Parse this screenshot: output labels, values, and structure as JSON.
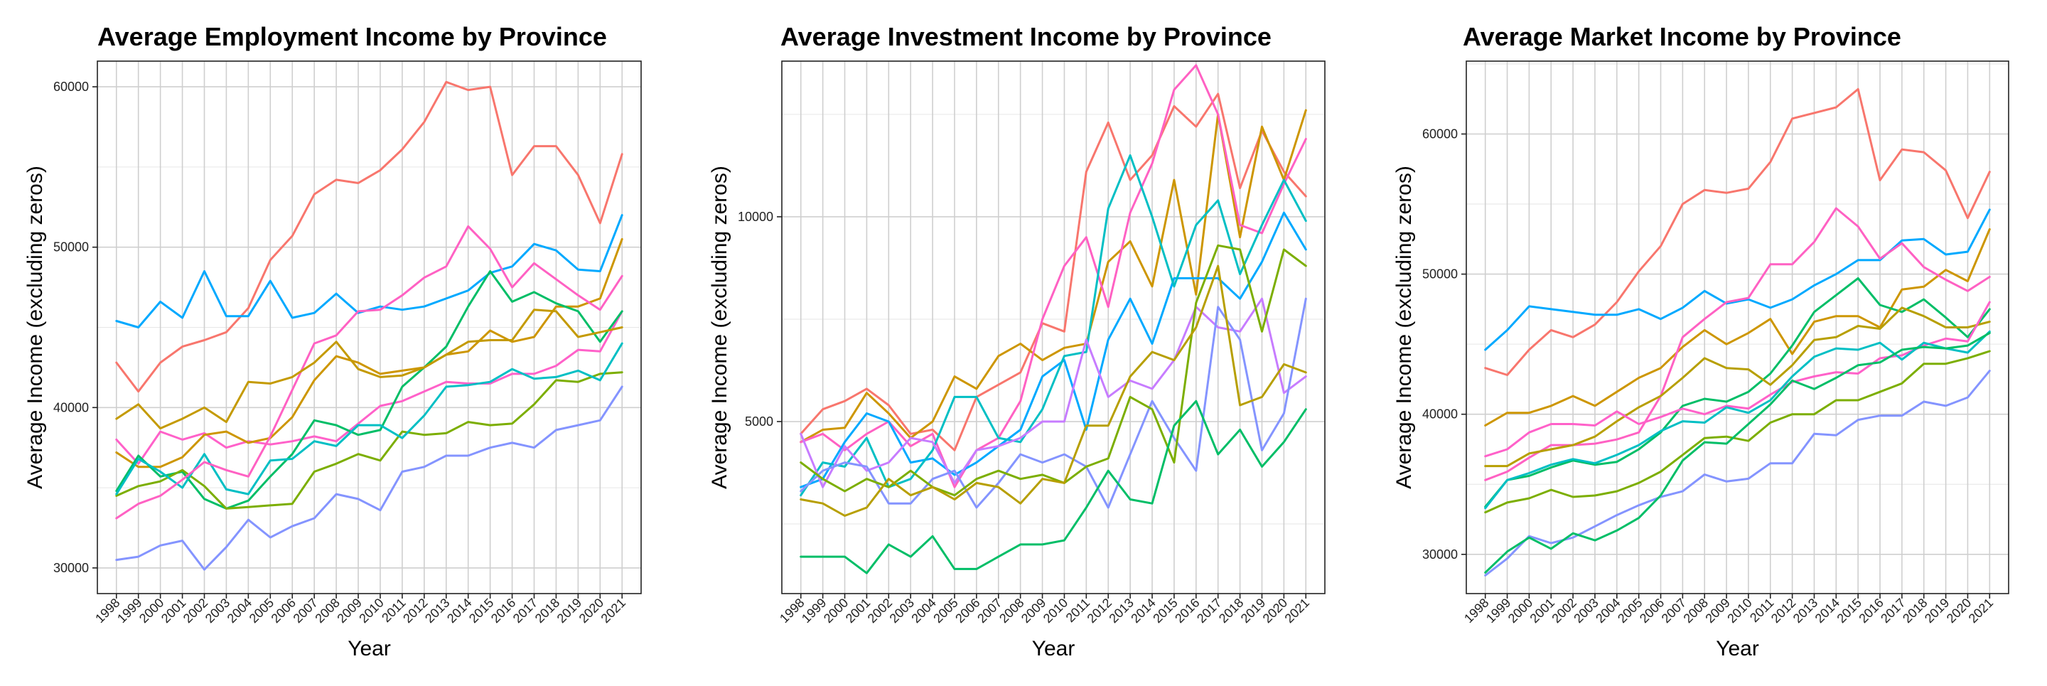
{
  "chart_data": [
    {
      "type": "line",
      "title": "Average Employment Income by Province",
      "xlabel": "Year",
      "ylabel": "Average Income (excluding zeros)",
      "x": [
        1998,
        1999,
        2000,
        2001,
        2002,
        2003,
        2004,
        2005,
        2006,
        2007,
        2008,
        2009,
        2010,
        2011,
        2012,
        2013,
        2014,
        2015,
        2016,
        2017,
        2018,
        2019,
        2020,
        2021
      ],
      "yticks": [
        30000,
        40000,
        50000,
        60000
      ],
      "ylim": [
        28400,
        61600
      ],
      "grid": true,
      "series": [
        {
          "color": "#F8766D",
          "values": [
            42800,
            41000,
            42800,
            43800,
            44200,
            44700,
            46200,
            49200,
            50700,
            53300,
            54200,
            54000,
            54800,
            56100,
            57800,
            60300,
            59800,
            60000,
            54500,
            56300,
            56300,
            54500,
            51500,
            55800
          ]
        },
        {
          "color": "#00A9FF",
          "values": [
            45400,
            45000,
            46600,
            45600,
            48500,
            45700,
            45700,
            47900,
            45600,
            45900,
            47100,
            45900,
            46300,
            46100,
            46300,
            46800,
            47300,
            48400,
            48800,
            50200,
            49800,
            48600,
            48500,
            52000
          ]
        },
        {
          "color": "#FF61C9",
          "values": [
            38000,
            36500,
            38500,
            38000,
            38400,
            37500,
            37900,
            37700,
            37900,
            38200,
            37900,
            39000,
            40100,
            40400,
            41000,
            41600,
            41500,
            41500,
            42100,
            42100,
            42600,
            43600,
            43500,
            46000
          ]
        },
        {
          "color": "#CD9600",
          "values": [
            37200,
            36300,
            36300,
            36900,
            38300,
            38500,
            37800,
            38100,
            39400,
            41700,
            43200,
            42800,
            42100,
            42300,
            42500,
            43300,
            43500,
            44800,
            44100,
            44400,
            46300,
            46300,
            46800,
            50500
          ]
        },
        {
          "color": "#00BE67",
          "values": [
            34800,
            37000,
            35700,
            36000,
            34300,
            33700,
            34200,
            35700,
            37100,
            39200,
            38900,
            38300,
            38600,
            41300,
            42500,
            43800,
            46300,
            48500,
            46600,
            47200,
            46500,
            46000,
            44100,
            46000
          ]
        },
        {
          "color": "#7CAE00",
          "values": [
            34500,
            35100,
            35400,
            36100,
            35100,
            33700,
            33800,
            33900,
            34000,
            36000,
            36500,
            37100,
            36700,
            38500,
            38300,
            38400,
            39100,
            38900,
            39000,
            40200,
            41700,
            41600,
            42100,
            42200
          ]
        },
        {
          "color": "#00BFC4",
          "values": [
            34600,
            36800,
            36000,
            35000,
            37100,
            34900,
            34600,
            36700,
            36800,
            37900,
            37600,
            38900,
            38900,
            38100,
            39500,
            41300,
            41400,
            41600,
            42400,
            41800,
            41900,
            42300,
            41700,
            44000
          ]
        },
        {
          "color": "#FF61C3",
          "values": [
            33100,
            34000,
            34500,
            35500,
            36600,
            36100,
            35700,
            38200,
            41100,
            44000,
            44500,
            46000,
            46100,
            47000,
            48100,
            48800,
            51300,
            49900,
            47500,
            49000,
            48000,
            47000,
            46100,
            48200
          ]
        },
        {
          "color": "#8494FF",
          "values": [
            30500,
            30700,
            31400,
            31700,
            29900,
            31300,
            33000,
            31900,
            32600,
            33100,
            34600,
            34300,
            33600,
            36000,
            36300,
            37000,
            37000,
            37500,
            37800,
            37500,
            38600,
            38900,
            39200,
            41300
          ]
        },
        {
          "color": "#C49A00",
          "values": [
            39300,
            40200,
            38700,
            39300,
            40000,
            39100,
            41600,
            41500,
            41900,
            42800,
            44100,
            42400,
            41900,
            42000,
            42500,
            43300,
            44100,
            44200,
            44200,
            46100,
            46000,
            44400,
            44700,
            45000
          ]
        }
      ]
    },
    {
      "type": "line",
      "title": "Average Investment Income by Province",
      "xlabel": "Year",
      "ylabel": "Average Income (excluding zeros)",
      "x": [
        1998,
        1999,
        2000,
        2001,
        2002,
        2003,
        2004,
        2005,
        2006,
        2007,
        2008,
        2009,
        2010,
        2011,
        2012,
        2013,
        2014,
        2015,
        2016,
        2017,
        2018,
        2019,
        2020,
        2021
      ],
      "yticks": [
        5000,
        10000
      ],
      "ylim": [
        800,
        13800
      ],
      "grid": true,
      "series": [
        {
          "color": "#F8766D",
          "values": [
            4700,
            5300,
            5500,
            5800,
            5400,
            4700,
            4800,
            4300,
            5600,
            5900,
            6200,
            7400,
            7200,
            11100,
            12300,
            10900,
            11500,
            12700,
            12200,
            13000,
            10700,
            12100,
            11100,
            10500
          ]
        },
        {
          "color": "#CD9600",
          "values": [
            4500,
            4800,
            4850,
            5700,
            5200,
            4600,
            5000,
            6100,
            5800,
            6600,
            6900,
            6500,
            6800,
            6900,
            8900,
            9400,
            8300,
            10900,
            8100,
            12500,
            9500,
            12200,
            10900,
            12600
          ]
        },
        {
          "color": "#FF61C3",
          "values": [
            4500,
            4700,
            4300,
            4700,
            5000,
            4400,
            4700,
            3400,
            4300,
            4600,
            5500,
            7500,
            8800,
            9500,
            7800,
            10100,
            11300,
            13100,
            13700,
            12500,
            9800,
            9600,
            10800,
            11900
          ]
        },
        {
          "color": "#00A9FF",
          "values": [
            3400,
            3600,
            4500,
            5200,
            5000,
            4000,
            4100,
            3700,
            4000,
            4400,
            4800,
            6100,
            6500,
            4800,
            7000,
            8000,
            6900,
            8500,
            8500,
            8500,
            8000,
            8900,
            10100,
            9200
          ]
        },
        {
          "color": "#00BFC4",
          "values": [
            3200,
            4000,
            3900,
            4600,
            3400,
            3600,
            4300,
            5600,
            5600,
            4600,
            4500,
            5300,
            6600,
            6700,
            10200,
            11500,
            10000,
            8300,
            9800,
            10400,
            8600,
            9800,
            10900,
            9900
          ]
        },
        {
          "color": "#C77CFF",
          "values": [
            4700,
            3400,
            4400,
            3800,
            4000,
            4600,
            4500,
            3500,
            4300,
            4400,
            4600,
            5000,
            5000,
            7000,
            5600,
            6000,
            5800,
            6500,
            7800,
            7300,
            7200,
            8000,
            5700,
            6100
          ]
        },
        {
          "color": "#8494FF",
          "values": [
            3300,
            3800,
            4000,
            3900,
            3000,
            3000,
            3600,
            3800,
            2900,
            3500,
            4200,
            4000,
            4200,
            3900,
            2900,
            4200,
            5500,
            4600,
            3800,
            7800,
            7000,
            4300,
            5200,
            8000
          ]
        },
        {
          "color": "#7CAE00",
          "values": [
            4000,
            3600,
            3300,
            3600,
            3400,
            3800,
            3400,
            3200,
            3600,
            3800,
            3600,
            3700,
            3500,
            3900,
            4100,
            5600,
            5300,
            4000,
            7900,
            9300,
            9200,
            7200,
            9200,
            8800
          ]
        },
        {
          "color": "#B79F00",
          "values": [
            3100,
            3000,
            2700,
            2900,
            3600,
            3200,
            3400,
            3100,
            3500,
            3400,
            3000,
            3600,
            3500,
            4900,
            4900,
            6100,
            6700,
            6500,
            7300,
            8800,
            5400,
            5600,
            6400,
            6200
          ]
        },
        {
          "color": "#00BE67",
          "values": [
            1700,
            1700,
            1700,
            1300,
            2000,
            1700,
            2200,
            1400,
            1400,
            1700,
            2000,
            2000,
            2100,
            2900,
            3800,
            3100,
            3000,
            4900,
            5500,
            4200,
            4800,
            3900,
            4500,
            5300
          ]
        }
      ]
    },
    {
      "type": "line",
      "title": "Average Market Income by Province",
      "xlabel": "Year",
      "ylabel": "Average Income (excluding zeros)",
      "x": [
        1998,
        1999,
        2000,
        2001,
        2002,
        2003,
        2004,
        2005,
        2006,
        2007,
        2008,
        2009,
        2010,
        2011,
        2012,
        2013,
        2014,
        2015,
        2016,
        2017,
        2018,
        2019,
        2020,
        2021
      ],
      "yticks": [
        30000,
        40000,
        50000,
        60000
      ],
      "ylim": [
        27200,
        65200
      ],
      "grid": true,
      "series": [
        {
          "color": "#F8766D",
          "values": [
            43300,
            42800,
            44600,
            46000,
            45500,
            46400,
            48000,
            50200,
            52000,
            55000,
            56000,
            55800,
            56100,
            58000,
            61100,
            61500,
            61900,
            63200,
            56700,
            58900,
            58700,
            57400,
            54000,
            57300
          ]
        },
        {
          "color": "#00A9FF",
          "values": [
            44600,
            46000,
            47700,
            47500,
            47300,
            47100,
            47100,
            47500,
            46800,
            47600,
            48800,
            47900,
            48200,
            47600,
            48200,
            49200,
            50000,
            51000,
            51000,
            52400,
            52500,
            51400,
            51600,
            54600
          ]
        },
        {
          "color": "#CD9600",
          "values": [
            39200,
            40100,
            40100,
            40600,
            41300,
            40600,
            41600,
            42600,
            43300,
            44800,
            46000,
            45000,
            45800,
            46800,
            44300,
            46600,
            47000,
            47000,
            46200,
            48900,
            49100,
            50300,
            49500,
            53200
          ]
        },
        {
          "color": "#FF61C3",
          "values": [
            35300,
            35900,
            36900,
            37800,
            37800,
            37900,
            38200,
            38700,
            41300,
            45500,
            46800,
            48000,
            48300,
            50700,
            50700,
            52300,
            54700,
            53400,
            51100,
            52200,
            50500,
            49600,
            48800,
            49800
          ]
        },
        {
          "color": "#00BE67",
          "values": [
            33400,
            35300,
            35600,
            36200,
            36700,
            36400,
            36600,
            37500,
            38700,
            40600,
            41100,
            40900,
            41600,
            42900,
            44900,
            47300,
            48500,
            49700,
            47800,
            47300,
            48200,
            46900,
            45500,
            47500
          ]
        },
        {
          "color": "#B79F00",
          "values": [
            36300,
            36300,
            37200,
            37500,
            37800,
            38400,
            39500,
            40500,
            41300,
            42600,
            44000,
            43300,
            43200,
            42100,
            43500,
            45300,
            45500,
            46300,
            46100,
            47600,
            47000,
            46200,
            46200,
            46600
          ]
        },
        {
          "color": "#FF61C9",
          "values": [
            37000,
            37500,
            38700,
            39300,
            39300,
            39200,
            40200,
            39300,
            39800,
            40400,
            40000,
            40600,
            40400,
            41400,
            42300,
            42700,
            43000,
            42900,
            44000,
            44200,
            44900,
            45400,
            45200,
            48000
          ]
        },
        {
          "color": "#00BFC4",
          "values": [
            33300,
            35300,
            35800,
            36400,
            36800,
            36500,
            37100,
            37800,
            38800,
            39500,
            39400,
            40500,
            40100,
            41000,
            42700,
            44100,
            44700,
            44600,
            45100,
            43900,
            45100,
            44700,
            44400,
            45900
          ]
        },
        {
          "color": "#7CAE00",
          "values": [
            33000,
            33700,
            34000,
            34600,
            34100,
            34200,
            34500,
            35100,
            35900,
            37100,
            38300,
            38400,
            38100,
            39400,
            40000,
            40000,
            41000,
            41000,
            41600,
            42200,
            43600,
            43600,
            44000,
            44500
          ]
        },
        {
          "color": "#8494FF",
          "values": [
            28500,
            29700,
            31300,
            30800,
            31200,
            32000,
            32800,
            33500,
            34100,
            34500,
            35700,
            35200,
            35400,
            36500,
            36500,
            38600,
            38500,
            39600,
            39900,
            39900,
            40900,
            40600,
            41200,
            43100
          ]
        },
        {
          "color": "#00BE67",
          "values": [
            28700,
            30200,
            31200,
            30400,
            31500,
            31000,
            31700,
            32600,
            34200,
            36700,
            38000,
            37900,
            39300,
            40700,
            42400,
            41800,
            42600,
            43500,
            43700,
            44600,
            44800,
            44700,
            44900,
            45800
          ]
        }
      ]
    }
  ]
}
